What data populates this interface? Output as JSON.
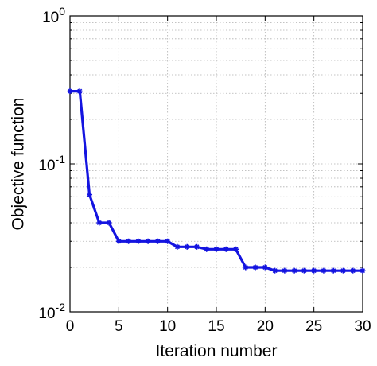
{
  "chart_data": {
    "type": "line",
    "xlabel": "Iteration number",
    "ylabel": "Objective function",
    "xlim": [
      0,
      30
    ],
    "ylim": [
      0.01,
      1
    ],
    "yscale": "log",
    "grid": true,
    "x_ticks": [
      "0",
      "5",
      "10",
      "15",
      "20",
      "25",
      "30"
    ],
    "y_ticks": [
      {
        "base": "10",
        "exp": "-2",
        "value": 0.01
      },
      {
        "base": "10",
        "exp": "-1",
        "value": 0.1
      },
      {
        "base": "10",
        "exp": "0",
        "value": 1
      }
    ],
    "colors": {
      "series": "#1414e0"
    },
    "series": [
      {
        "x": [
          0,
          1,
          2,
          3,
          4,
          5,
          6,
          7,
          8,
          9,
          10,
          11,
          12,
          13,
          14,
          15,
          16,
          17,
          18,
          19,
          20,
          21,
          22,
          23,
          24,
          25,
          26,
          27,
          28,
          29,
          30
        ],
        "y": [
          0.31,
          0.31,
          0.062,
          0.04,
          0.04,
          0.03,
          0.03,
          0.03,
          0.03,
          0.03,
          0.03,
          0.0275,
          0.0275,
          0.0275,
          0.0265,
          0.0265,
          0.0265,
          0.0265,
          0.02,
          0.02,
          0.02,
          0.019,
          0.019,
          0.019,
          0.019,
          0.019,
          0.019,
          0.019,
          0.019,
          0.019,
          0.019
        ]
      }
    ]
  }
}
